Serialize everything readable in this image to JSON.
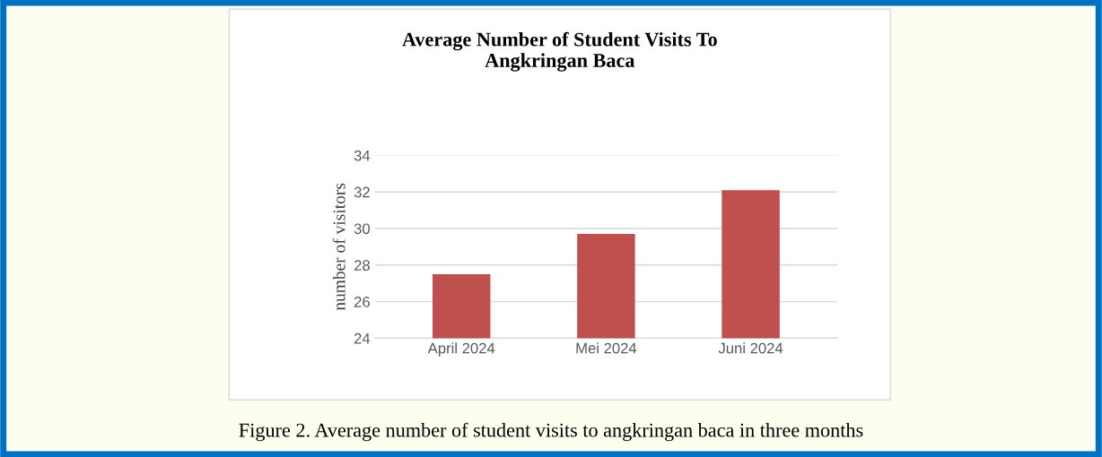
{
  "chart_data": {
    "type": "bar",
    "title": "Average Number of Student Visits To\nAngkringan Baca",
    "ylabel": "number of visitors",
    "categories": [
      "April 2024",
      "Mei 2024",
      "Juni 2024"
    ],
    "values": [
      27.5,
      29.7,
      32.1
    ],
    "color": "#c0504d",
    "ylim": [
      24,
      34
    ],
    "yticks": [
      24,
      26,
      28,
      30,
      32,
      34
    ],
    "grid": "y",
    "annotations": [
      "Figure 2. Average number of student visits to angkringan baca in three months"
    ]
  }
}
